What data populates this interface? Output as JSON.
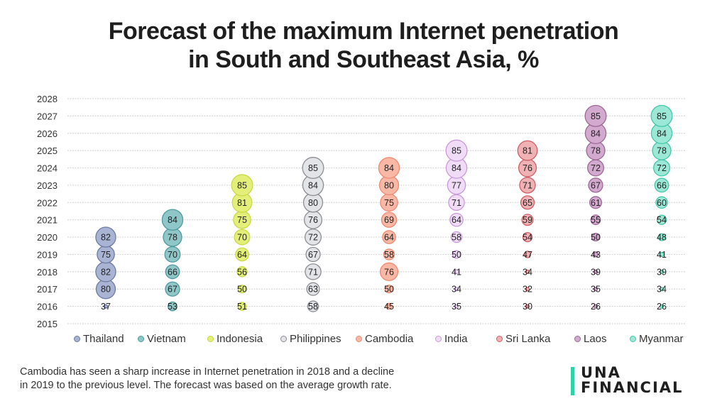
{
  "chart_data": {
    "type": "bubble",
    "title_lines": [
      "Forecast of the maximum Internet penetration",
      "in South and Southeast Asia, %"
    ],
    "y_ticks": [
      "2015",
      "2016",
      "2017",
      "2018",
      "2019",
      "2020",
      "2021",
      "2022",
      "2023",
      "2024",
      "2025",
      "2026",
      "2027",
      "2028"
    ],
    "ylim": [
      2015,
      2028
    ],
    "grid": true,
    "legend_position": "bottom",
    "series": [
      {
        "name": "Thailand",
        "color": "#a9b4d4",
        "stroke": "#6d7aa3",
        "start_year": 2016,
        "values": [
          37,
          80,
          82,
          75,
          82
        ]
      },
      {
        "name": "Vietnam",
        "color": "#8fc6c8",
        "stroke": "#4f9a9d",
        "start_year": 2016,
        "values": [
          53,
          67,
          66,
          70,
          78,
          84
        ]
      },
      {
        "name": "Indonesia",
        "color": "#e3ef78",
        "stroke": "#c9d946",
        "start_year": 2016,
        "values": [
          51,
          50,
          56,
          64,
          70,
          75,
          81,
          85
        ]
      },
      {
        "name": "Philippines",
        "color": "#e3e4e8",
        "stroke": "#8d8e93",
        "start_year": 2016,
        "values": [
          58,
          63,
          71,
          67,
          72,
          76,
          80,
          84,
          85
        ]
      },
      {
        "name": "Cambodia",
        "color": "#f8b8a5",
        "stroke": "#ec8a72",
        "start_year": 2016,
        "values": [
          45,
          50,
          76,
          58,
          64,
          69,
          75,
          80,
          84
        ]
      },
      {
        "name": "India",
        "color": "#f0dcf6",
        "stroke": "#c99ad8",
        "start_year": 2016,
        "values": [
          35,
          34,
          41,
          50,
          58,
          64,
          71,
          77,
          84,
          85
        ]
      },
      {
        "name": "Sri Lanka",
        "color": "#efb1b4",
        "stroke": "#cf5f66",
        "start_year": 2016,
        "values": [
          30,
          32,
          34,
          47,
          54,
          59,
          65,
          71,
          76,
          81
        ]
      },
      {
        "name": "Laos",
        "color": "#d4a9cf",
        "stroke": "#9c6a97",
        "start_year": 2016,
        "values": [
          26,
          35,
          39,
          43,
          50,
          55,
          61,
          67,
          72,
          78,
          84,
          85
        ]
      },
      {
        "name": "Myanmar",
        "color": "#9be8d6",
        "stroke": "#45c7a9",
        "start_year": 2016,
        "values": [
          26,
          34,
          39,
          41,
          48,
          54,
          60,
          66,
          72,
          78,
          84,
          85
        ]
      }
    ]
  },
  "note": "Cambodia has seen a sharp increase in Internet penetration in 2018 and a decline in 2019 to the previous level. The forecast was based on the average growth rate.",
  "note_lines": [
    "Cambodia has seen a sharp increase in Internet penetration in 2018 and a decline",
    "in 2019 to the previous level. The forecast was based on the average growth rate."
  ],
  "logo": {
    "line1": "UNA",
    "line2": "FINANCIAL",
    "accent": "#2dd3a7"
  }
}
